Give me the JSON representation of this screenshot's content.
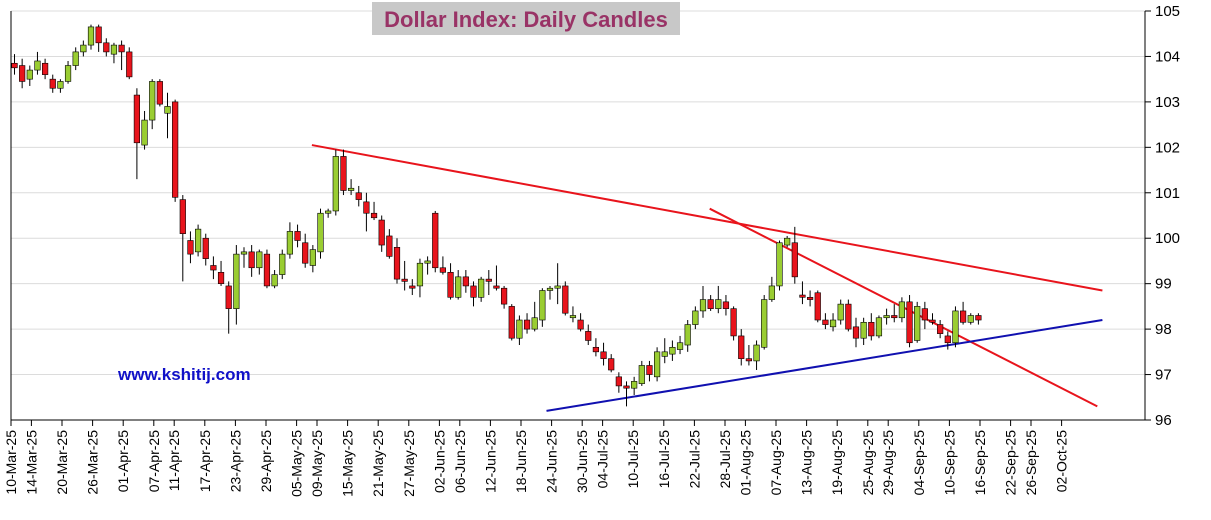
{
  "colors": {
    "up": "#9ACD32",
    "down": "#E8141C",
    "resistance": "#E8141C",
    "support": "#1010B0",
    "title_bg": "#C8C8C8",
    "title_text": "#993366",
    "watermark": "#1010C8"
  },
  "chart_data": {
    "type": "candlestick",
    "title": "Dollar Index: Daily Candles",
    "watermark": "www.kshitij.com",
    "ylim": [
      96,
      105
    ],
    "yticks": [
      "96",
      "97",
      "98",
      "99",
      "100",
      "101",
      "102",
      "103",
      "104",
      "105"
    ],
    "y_axis_side": "right",
    "x_tick_labels": [
      "10-Mar-25",
      "14-Mar-25",
      "20-Mar-25",
      "26-Mar-25",
      "01-Apr-25",
      "07-Apr-25",
      "11-Apr-25",
      "17-Apr-25",
      "23-Apr-25",
      "29-Apr-25",
      "05-May-25",
      "09-May-25",
      "15-May-25",
      "21-May-25",
      "27-May-25",
      "02-Jun-25",
      "06-Jun-25",
      "12-Jun-25",
      "18-Jun-25",
      "24-Jun-25",
      "30-Jun-25",
      "04-Jul-25",
      "10-Jul-25",
      "16-Jul-25",
      "22-Jul-25",
      "28-Jul-25",
      "01-Aug-25",
      "07-Aug-25",
      "13-Aug-25",
      "19-Aug-25",
      "25-Aug-25",
      "29-Aug-25",
      "04-Sep-25",
      "10-Sep-25",
      "16-Sep-25",
      "22-Sep-25",
      "26-Sep-25",
      "02-Oct-25"
    ],
    "candles": [
      {
        "o": 103.85,
        "h": 104.05,
        "l": 103.6,
        "c": 103.75
      },
      {
        "o": 103.8,
        "h": 103.95,
        "l": 103.3,
        "c": 103.45
      },
      {
        "o": 103.5,
        "h": 103.8,
        "l": 103.35,
        "c": 103.7
      },
      {
        "o": 103.7,
        "h": 104.1,
        "l": 103.6,
        "c": 103.9
      },
      {
        "o": 103.85,
        "h": 103.95,
        "l": 103.5,
        "c": 103.6
      },
      {
        "o": 103.5,
        "h": 103.6,
        "l": 103.2,
        "c": 103.3
      },
      {
        "o": 103.3,
        "h": 103.5,
        "l": 103.2,
        "c": 103.45
      },
      {
        "o": 103.45,
        "h": 103.9,
        "l": 103.4,
        "c": 103.8
      },
      {
        "o": 103.8,
        "h": 104.2,
        "l": 103.7,
        "c": 104.1
      },
      {
        "o": 104.1,
        "h": 104.35,
        "l": 104.0,
        "c": 104.25
      },
      {
        "o": 104.25,
        "h": 104.7,
        "l": 104.15,
        "c": 104.65
      },
      {
        "o": 104.65,
        "h": 104.7,
        "l": 104.1,
        "c": 104.3
      },
      {
        "o": 104.3,
        "h": 104.4,
        "l": 104.0,
        "c": 104.1
      },
      {
        "o": 104.05,
        "h": 104.3,
        "l": 103.85,
        "c": 104.25
      },
      {
        "o": 104.25,
        "h": 104.35,
        "l": 103.7,
        "c": 104.1
      },
      {
        "o": 104.1,
        "h": 104.2,
        "l": 103.5,
        "c": 103.55
      },
      {
        "o": 103.15,
        "h": 103.3,
        "l": 101.3,
        "c": 102.1
      },
      {
        "o": 102.05,
        "h": 102.8,
        "l": 101.95,
        "c": 102.6
      },
      {
        "o": 102.6,
        "h": 103.5,
        "l": 102.4,
        "c": 103.45
      },
      {
        "o": 103.45,
        "h": 103.5,
        "l": 102.9,
        "c": 102.95
      },
      {
        "o": 102.75,
        "h": 103.2,
        "l": 102.2,
        "c": 102.9
      },
      {
        "o": 103.0,
        "h": 103.05,
        "l": 100.8,
        "c": 100.9
      },
      {
        "o": 100.85,
        "h": 100.95,
        "l": 99.05,
        "c": 100.1
      },
      {
        "o": 99.95,
        "h": 100.15,
        "l": 99.45,
        "c": 99.65
      },
      {
        "o": 99.7,
        "h": 100.3,
        "l": 99.6,
        "c": 100.2
      },
      {
        "o": 100.0,
        "h": 100.1,
        "l": 99.4,
        "c": 99.55
      },
      {
        "o": 99.4,
        "h": 99.6,
        "l": 99.1,
        "c": 99.3
      },
      {
        "o": 99.25,
        "h": 99.5,
        "l": 98.95,
        "c": 99.0
      },
      {
        "o": 98.95,
        "h": 99.05,
        "l": 97.9,
        "c": 98.45
      },
      {
        "o": 98.45,
        "h": 99.85,
        "l": 98.1,
        "c": 99.65
      },
      {
        "o": 99.65,
        "h": 99.8,
        "l": 99.35,
        "c": 99.7
      },
      {
        "o": 99.7,
        "h": 99.85,
        "l": 99.15,
        "c": 99.35
      },
      {
        "o": 99.35,
        "h": 99.75,
        "l": 99.2,
        "c": 99.7
      },
      {
        "o": 99.65,
        "h": 99.75,
        "l": 98.9,
        "c": 98.95
      },
      {
        "o": 98.95,
        "h": 99.3,
        "l": 98.9,
        "c": 99.2
      },
      {
        "o": 99.2,
        "h": 99.75,
        "l": 99.1,
        "c": 99.65
      },
      {
        "o": 99.65,
        "h": 100.35,
        "l": 99.55,
        "c": 100.15
      },
      {
        "o": 100.15,
        "h": 100.3,
        "l": 99.8,
        "c": 99.95
      },
      {
        "o": 99.9,
        "h": 100.1,
        "l": 99.35,
        "c": 99.45
      },
      {
        "o": 99.4,
        "h": 99.85,
        "l": 99.25,
        "c": 99.75
      },
      {
        "o": 99.7,
        "h": 100.65,
        "l": 99.55,
        "c": 100.55
      },
      {
        "o": 100.55,
        "h": 100.65,
        "l": 100.45,
        "c": 100.6
      },
      {
        "o": 100.6,
        "h": 101.95,
        "l": 100.5,
        "c": 101.8
      },
      {
        "o": 101.8,
        "h": 101.95,
        "l": 100.95,
        "c": 101.05
      },
      {
        "o": 101.05,
        "h": 101.3,
        "l": 100.95,
        "c": 101.1
      },
      {
        "o": 101.0,
        "h": 101.15,
        "l": 100.7,
        "c": 100.85
      },
      {
        "o": 100.8,
        "h": 101.0,
        "l": 100.15,
        "c": 100.55
      },
      {
        "o": 100.55,
        "h": 100.8,
        "l": 100.4,
        "c": 100.45
      },
      {
        "o": 100.4,
        "h": 100.5,
        "l": 99.7,
        "c": 99.85
      },
      {
        "o": 100.05,
        "h": 100.2,
        "l": 99.55,
        "c": 99.6
      },
      {
        "o": 99.8,
        "h": 100.0,
        "l": 99.0,
        "c": 99.1
      },
      {
        "o": 99.1,
        "h": 99.5,
        "l": 98.85,
        "c": 99.05
      },
      {
        "o": 98.95,
        "h": 99.1,
        "l": 98.75,
        "c": 98.9
      },
      {
        "o": 98.95,
        "h": 99.55,
        "l": 98.7,
        "c": 99.45
      },
      {
        "o": 99.45,
        "h": 99.6,
        "l": 99.2,
        "c": 99.5
      },
      {
        "o": 100.55,
        "h": 100.6,
        "l": 99.25,
        "c": 99.35
      },
      {
        "o": 99.35,
        "h": 99.6,
        "l": 99.2,
        "c": 99.25
      },
      {
        "o": 99.25,
        "h": 99.45,
        "l": 98.65,
        "c": 98.7
      },
      {
        "o": 98.7,
        "h": 99.3,
        "l": 98.65,
        "c": 99.15
      },
      {
        "o": 99.15,
        "h": 99.3,
        "l": 98.8,
        "c": 98.95
      },
      {
        "o": 98.95,
        "h": 99.05,
        "l": 98.5,
        "c": 98.7
      },
      {
        "o": 98.7,
        "h": 99.15,
        "l": 98.6,
        "c": 99.1
      },
      {
        "o": 99.1,
        "h": 99.3,
        "l": 98.75,
        "c": 99.05
      },
      {
        "o": 98.95,
        "h": 99.4,
        "l": 98.85,
        "c": 98.9
      },
      {
        "o": 98.9,
        "h": 98.95,
        "l": 98.45,
        "c": 98.55
      },
      {
        "o": 98.5,
        "h": 98.55,
        "l": 97.75,
        "c": 97.8
      },
      {
        "o": 97.8,
        "h": 98.3,
        "l": 97.65,
        "c": 98.2
      },
      {
        "o": 98.2,
        "h": 98.35,
        "l": 97.9,
        "c": 98.0
      },
      {
        "o": 98.0,
        "h": 98.6,
        "l": 97.95,
        "c": 98.25
      },
      {
        "o": 98.2,
        "h": 98.9,
        "l": 98.05,
        "c": 98.85
      },
      {
        "o": 98.85,
        "h": 98.95,
        "l": 98.65,
        "c": 98.9
      },
      {
        "o": 98.9,
        "h": 99.45,
        "l": 98.55,
        "c": 98.95
      },
      {
        "o": 98.95,
        "h": 99.05,
        "l": 98.3,
        "c": 98.35
      },
      {
        "o": 98.25,
        "h": 98.5,
        "l": 98.15,
        "c": 98.3
      },
      {
        "o": 98.2,
        "h": 98.35,
        "l": 97.95,
        "c": 98.0
      },
      {
        "o": 97.95,
        "h": 98.1,
        "l": 97.65,
        "c": 97.75
      },
      {
        "o": 97.6,
        "h": 97.8,
        "l": 97.4,
        "c": 97.5
      },
      {
        "o": 97.5,
        "h": 97.7,
        "l": 97.2,
        "c": 97.35
      },
      {
        "o": 97.35,
        "h": 97.45,
        "l": 97.05,
        "c": 97.1
      },
      {
        "o": 96.95,
        "h": 97.05,
        "l": 96.6,
        "c": 96.75
      },
      {
        "o": 96.75,
        "h": 96.85,
        "l": 96.3,
        "c": 96.7
      },
      {
        "o": 96.7,
        "h": 96.95,
        "l": 96.55,
        "c": 96.85
      },
      {
        "o": 96.8,
        "h": 97.3,
        "l": 96.75,
        "c": 97.2
      },
      {
        "o": 97.2,
        "h": 97.3,
        "l": 96.85,
        "c": 97.0
      },
      {
        "o": 96.95,
        "h": 97.6,
        "l": 96.85,
        "c": 97.5
      },
      {
        "o": 97.4,
        "h": 97.8,
        "l": 97.25,
        "c": 97.5
      },
      {
        "o": 97.45,
        "h": 97.75,
        "l": 97.3,
        "c": 97.6
      },
      {
        "o": 97.55,
        "h": 97.85,
        "l": 97.45,
        "c": 97.7
      },
      {
        "o": 97.65,
        "h": 98.2,
        "l": 97.5,
        "c": 98.1
      },
      {
        "o": 98.1,
        "h": 98.5,
        "l": 98.0,
        "c": 98.4
      },
      {
        "o": 98.4,
        "h": 98.95,
        "l": 98.25,
        "c": 98.65
      },
      {
        "o": 98.65,
        "h": 98.75,
        "l": 98.4,
        "c": 98.45
      },
      {
        "o": 98.45,
        "h": 98.95,
        "l": 98.35,
        "c": 98.65
      },
      {
        "o": 98.6,
        "h": 98.75,
        "l": 98.3,
        "c": 98.45
      },
      {
        "o": 98.45,
        "h": 98.5,
        "l": 97.75,
        "c": 97.85
      },
      {
        "o": 97.85,
        "h": 98.0,
        "l": 97.2,
        "c": 97.35
      },
      {
        "o": 97.35,
        "h": 97.65,
        "l": 97.2,
        "c": 97.3
      },
      {
        "o": 97.3,
        "h": 97.75,
        "l": 97.1,
        "c": 97.65
      },
      {
        "o": 97.6,
        "h": 98.75,
        "l": 97.55,
        "c": 98.65
      },
      {
        "o": 98.65,
        "h": 99.15,
        "l": 98.6,
        "c": 98.95
      },
      {
        "o": 98.95,
        "h": 99.95,
        "l": 98.85,
        "c": 99.9
      },
      {
        "o": 99.85,
        "h": 100.05,
        "l": 99.8,
        "c": 100.0
      },
      {
        "o": 99.9,
        "h": 100.25,
        "l": 99.0,
        "c": 99.15
      },
      {
        "o": 98.75,
        "h": 99.05,
        "l": 98.55,
        "c": 98.7
      },
      {
        "o": 98.7,
        "h": 98.85,
        "l": 98.5,
        "c": 98.65
      },
      {
        "o": 98.8,
        "h": 98.85,
        "l": 98.15,
        "c": 98.2
      },
      {
        "o": 98.2,
        "h": 98.35,
        "l": 98.0,
        "c": 98.1
      },
      {
        "o": 98.05,
        "h": 98.35,
        "l": 97.95,
        "c": 98.2
      },
      {
        "o": 98.2,
        "h": 98.65,
        "l": 98.1,
        "c": 98.55
      },
      {
        "o": 98.55,
        "h": 98.65,
        "l": 97.95,
        "c": 98.0
      },
      {
        "o": 98.05,
        "h": 98.25,
        "l": 97.6,
        "c": 97.8
      },
      {
        "o": 97.8,
        "h": 98.25,
        "l": 97.65,
        "c": 98.15
      },
      {
        "o": 98.15,
        "h": 98.35,
        "l": 97.75,
        "c": 97.85
      },
      {
        "o": 97.85,
        "h": 98.3,
        "l": 97.8,
        "c": 98.25
      },
      {
        "o": 98.25,
        "h": 98.45,
        "l": 98.1,
        "c": 98.3
      },
      {
        "o": 98.3,
        "h": 98.55,
        "l": 98.15,
        "c": 98.25
      },
      {
        "o": 98.25,
        "h": 98.7,
        "l": 98.15,
        "c": 98.6
      },
      {
        "o": 98.6,
        "h": 98.75,
        "l": 97.6,
        "c": 97.7
      },
      {
        "o": 97.75,
        "h": 98.6,
        "l": 97.7,
        "c": 98.5
      },
      {
        "o": 98.45,
        "h": 98.6,
        "l": 98.0,
        "c": 98.2
      },
      {
        "o": 98.2,
        "h": 98.35,
        "l": 98.1,
        "c": 98.15
      },
      {
        "o": 98.1,
        "h": 98.2,
        "l": 97.8,
        "c": 97.9
      },
      {
        "o": 97.85,
        "h": 97.95,
        "l": 97.55,
        "c": 97.7
      },
      {
        "o": 97.7,
        "h": 98.5,
        "l": 97.6,
        "c": 98.4
      },
      {
        "o": 98.4,
        "h": 98.6,
        "l": 98.1,
        "c": 98.15
      },
      {
        "o": 98.15,
        "h": 98.35,
        "l": 98.1,
        "c": 98.3
      },
      {
        "o": 98.3,
        "h": 98.35,
        "l": 98.1,
        "c": 98.2
      }
    ],
    "trendlines": [
      {
        "name": "resistance-upper",
        "x": [
          "08-May-25",
          "10-Oct-25"
        ],
        "y": [
          102.05,
          98.85
        ]
      },
      {
        "name": "resistance-steep",
        "x": [
          "25-Jul-25",
          "09-Oct-25"
        ],
        "y": [
          100.65,
          96.3
        ]
      },
      {
        "name": "support",
        "x": [
          "23-Jun-25",
          "10-Oct-25"
        ],
        "y": [
          96.2,
          98.2
        ]
      }
    ]
  }
}
